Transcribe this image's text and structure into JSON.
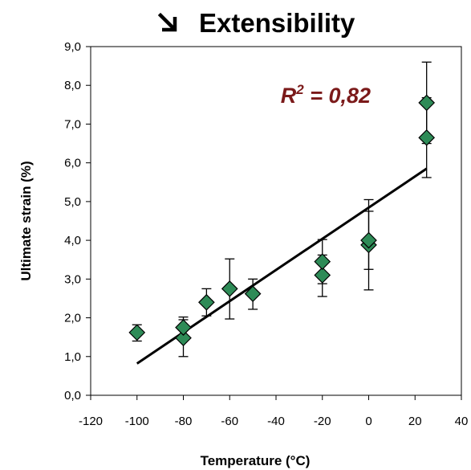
{
  "chart_data": {
    "type": "scatter",
    "title": "Extensibility",
    "title_icon": "south-east-arrow-icon",
    "xlabel": "Temperature (°C)",
    "ylabel": "Ultimate strain (%)",
    "xlim": [
      -120,
      40
    ],
    "ylim": [
      0,
      9
    ],
    "x_ticks": [
      "-120",
      "-100",
      "-80",
      "-60",
      "-40",
      "-20",
      "0",
      "20",
      "40"
    ],
    "x_tick_values": [
      -120,
      -100,
      -80,
      -60,
      -40,
      -20,
      0,
      20,
      40
    ],
    "y_ticks": [
      "0,0",
      "1,0",
      "2,0",
      "3,0",
      "4,0",
      "5,0",
      "6,0",
      "7,0",
      "8,0",
      "9,0"
    ],
    "y_tick_values": [
      0,
      1,
      2,
      3,
      4,
      5,
      6,
      7,
      8,
      9
    ],
    "grid": false,
    "legend": "none",
    "annotation": {
      "base": "R",
      "sup": "2",
      "rest": " = 0,82",
      "color": "#7b1a1a",
      "x": -38,
      "y": 7.55
    },
    "marker_color": "#2e8b57",
    "marker_stroke": "#000000",
    "points": [
      {
        "x": -100,
        "y": 1.62,
        "err_low": 1.4,
        "err_high": 1.82
      },
      {
        "x": -80,
        "y": 1.48,
        "err_low": 1.0,
        "err_high": 1.95
      },
      {
        "x": -80,
        "y": 1.75,
        "err_low": 1.5,
        "err_high": 2.02
      },
      {
        "x": -70,
        "y": 2.4,
        "err_low": 2.05,
        "err_high": 2.75
      },
      {
        "x": -60,
        "y": 2.75,
        "err_low": 1.97,
        "err_high": 3.52
      },
      {
        "x": -50,
        "y": 2.62,
        "err_low": 2.22,
        "err_high": 3.0
      },
      {
        "x": -20,
        "y": 3.1,
        "err_low": 2.55,
        "err_high": 3.62
      },
      {
        "x": -20,
        "y": 3.45,
        "err_low": 2.88,
        "err_high": 4.02
      },
      {
        "x": 0,
        "y": 3.88,
        "err_low": 2.72,
        "err_high": 5.05
      },
      {
        "x": 0,
        "y": 4.0,
        "err_low": 3.25,
        "err_high": 4.75
      },
      {
        "x": 25,
        "y": 6.65,
        "err_low": 5.62,
        "err_high": 7.68
      },
      {
        "x": 25,
        "y": 7.55,
        "err_low": 6.5,
        "err_high": 8.6
      }
    ],
    "trend_line": [
      {
        "x": -100,
        "y": 0.82
      },
      {
        "x": 25,
        "y": 5.85
      }
    ]
  }
}
